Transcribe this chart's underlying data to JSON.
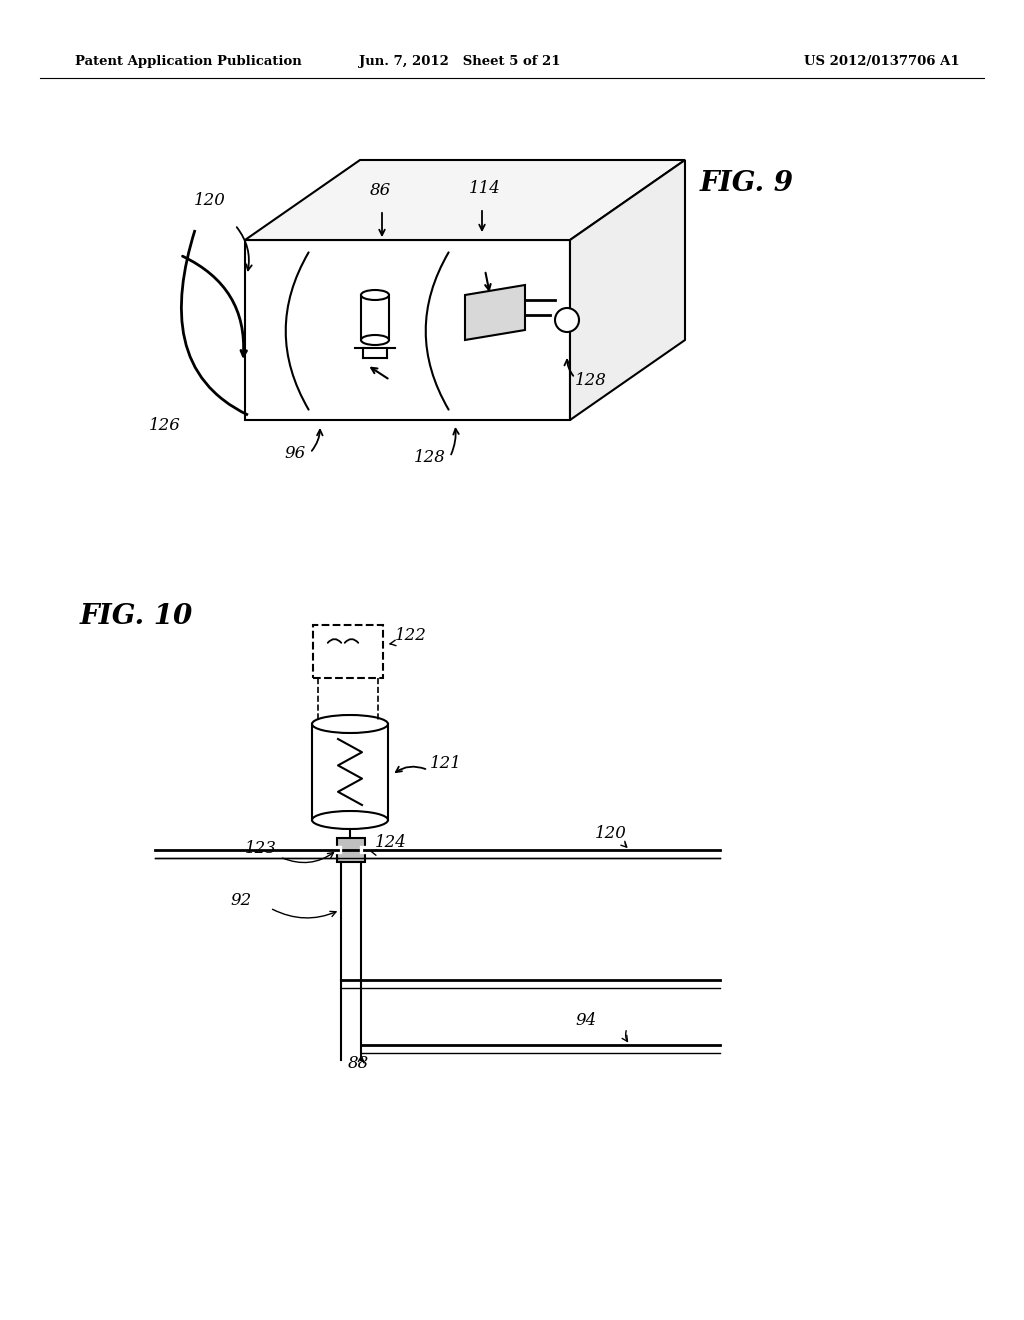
{
  "header_left": "Patent Application Publication",
  "header_mid": "Jun. 7, 2012   Sheet 5 of 21",
  "header_right": "US 2012/0137706 A1",
  "fig9_title": "FIG. 9",
  "fig10_title": "FIG. 10",
  "bg_color": "#ffffff",
  "line_color": "#000000"
}
